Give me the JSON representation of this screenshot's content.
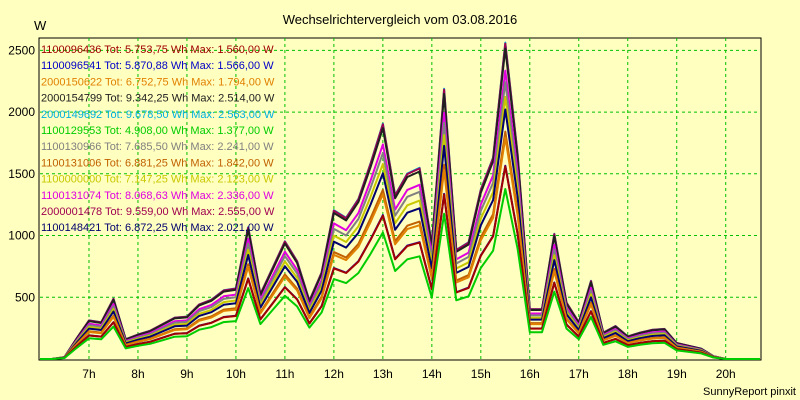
{
  "chart_data": {
    "type": "line",
    "title": "Wechselrichtervergleich vom 03.08.2016",
    "ylabel": "W",
    "footer": "SunnyReport pinxit",
    "ylim": [
      0,
      2600
    ],
    "xlim": [
      6.0,
      20.7
    ],
    "grid": true,
    "legend_placement": "top-left",
    "x_ticks": [
      {
        "value": 7,
        "label": "7h"
      },
      {
        "value": 8,
        "label": "8h"
      },
      {
        "value": 9,
        "label": "9h"
      },
      {
        "value": 10,
        "label": "10h"
      },
      {
        "value": 11,
        "label": "11h"
      },
      {
        "value": 12,
        "label": "12h"
      },
      {
        "value": 13,
        "label": "13h"
      },
      {
        "value": 14,
        "label": "14h"
      },
      {
        "value": 15,
        "label": "15h"
      },
      {
        "value": 16,
        "label": "16h"
      },
      {
        "value": 17,
        "label": "17h"
      },
      {
        "value": 18,
        "label": "18h"
      },
      {
        "value": 19,
        "label": "19h"
      },
      {
        "value": 20,
        "label": "20h"
      }
    ],
    "y_ticks": [
      {
        "value": 500,
        "label": "500"
      },
      {
        "value": 1000,
        "label": "1000"
      },
      {
        "value": 1500,
        "label": "1500"
      },
      {
        "value": 2000,
        "label": "2000"
      },
      {
        "value": 2500,
        "label": "2500"
      }
    ],
    "x": [
      6.0,
      6.25,
      6.5,
      6.75,
      7.0,
      7.25,
      7.5,
      7.75,
      8.0,
      8.25,
      8.5,
      8.75,
      9.0,
      9.25,
      9.5,
      9.75,
      10.0,
      10.25,
      10.5,
      10.75,
      11.0,
      11.25,
      11.5,
      11.75,
      12.0,
      12.25,
      12.5,
      12.75,
      13.0,
      13.25,
      13.5,
      13.75,
      14.0,
      14.25,
      14.5,
      14.75,
      15.0,
      15.25,
      15.5,
      15.75,
      16.0,
      16.25,
      16.5,
      16.75,
      17.0,
      17.25,
      17.5,
      17.75,
      18.0,
      18.25,
      18.5,
      18.75,
      19.0,
      19.25,
      19.5,
      19.75,
      20.0,
      20.25,
      20.5,
      20.7
    ],
    "profile": [
      0,
      0,
      0.02,
      0.22,
      0.41,
      0.39,
      0.64,
      0.21,
      0.26,
      0.3,
      0.37,
      0.44,
      0.45,
      0.58,
      0.63,
      0.73,
      0.75,
      1.4,
      0.69,
      0.97,
      1.25,
      1.04,
      0.62,
      0.92,
      1.58,
      1.5,
      1.7,
      2.08,
      2.5,
      1.74,
      1.97,
      2.03,
      1.22,
      2.87,
      1.16,
      1.24,
      1.8,
      2.14,
      3.36,
      2.18,
      0.53,
      0.53,
      1.33,
      0.6,
      0.39,
      0.83,
      0.28,
      0.35,
      0.24,
      0.28,
      0.31,
      0.32,
      0.17,
      0.14,
      0.11,
      0.03,
      0,
      0,
      0,
      0
    ],
    "series": [
      {
        "name": "1100096436",
        "label": "1100096436 Tot: 5.753,75 Wh Max: 1.560,00 W",
        "color": "#a00000",
        "peak": 1560
      },
      {
        "name": "1100096541",
        "label": "1100096541 Tot: 5.870,88 Wh Max: 1.566,00 W",
        "color": "#0000c8",
        "peak": 1566
      },
      {
        "name": "2000150622",
        "label": "2000150622 Tot: 6.752,75 Wh Max: 1.794,00 W",
        "color": "#e08000",
        "peak": 1794
      },
      {
        "name": "2000154799",
        "label": "2000154799 Tot: 9.342,25 Wh Max: 2.514,00 W",
        "color": "#202020",
        "peak": 2514
      },
      {
        "name": "2000149692",
        "label": "2000149692 Tot: 9.678,50 Wh Max: 2.563,00 W",
        "color": "#00b0e0",
        "peak": 2563
      },
      {
        "name": "1100129553",
        "label": "1100129553 Tot: 4.908,00 Wh Max: 1.377,00 W",
        "color": "#00cc00",
        "peak": 1377
      },
      {
        "name": "1100130966",
        "label": "1100130966 Tot: 7.685,50 Wh Max: 2.241,00 W",
        "color": "#808080",
        "peak": 2241
      },
      {
        "name": "1100131006",
        "label": "1100131006 Tot: 6.881,25 Wh Max: 1.842,00 W",
        "color": "#c06000",
        "peak": 1842
      },
      {
        "name": "1100000000",
        "label": "1100000000 Tot: 7.147,25 Wh Max: 2.123,00 W",
        "color": "#c8c800",
        "peak": 2123
      },
      {
        "name": "1100131074",
        "label": "1100131074 Tot: 8.068,63 Wh Max: 2.336,00 W",
        "color": "#e000e0",
        "peak": 2336
      },
      {
        "name": "2000001478",
        "label": "2000001478 Tot: 9.559,00 Wh Max: 2.555,00 W",
        "color": "#a00050",
        "peak": 2555
      },
      {
        "name": "1100148421",
        "label": "1100148421 Tot: 6.872,25 Wh Max: 2.021,00 W",
        "color": "#00006e",
        "peak": 2021
      }
    ]
  }
}
